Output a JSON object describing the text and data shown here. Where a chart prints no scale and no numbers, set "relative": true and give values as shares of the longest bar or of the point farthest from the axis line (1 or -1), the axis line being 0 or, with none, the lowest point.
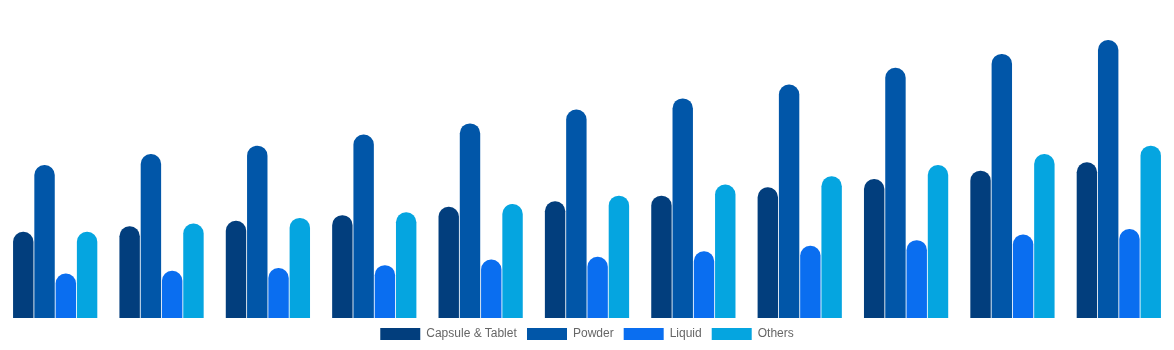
{
  "chart_data": {
    "type": "bar",
    "relative": true,
    "legend": "bottom",
    "grid": false,
    "categories": [
      null,
      null,
      null,
      null,
      null,
      null,
      null,
      null,
      null,
      null,
      null
    ],
    "series": [
      {
        "name": "Capsule & Tablet",
        "color": "#023e7d",
        "values": [
          0.31,
          0.33,
          0.35,
          0.37,
          0.4,
          0.42,
          0.44,
          0.47,
          0.5,
          0.53,
          0.56
        ]
      },
      {
        "name": "Powder",
        "color": "#0156a8",
        "values": [
          0.55,
          0.59,
          0.62,
          0.66,
          0.7,
          0.75,
          0.79,
          0.84,
          0.9,
          0.95,
          1
        ]
      },
      {
        "name": "Liquid",
        "color": "#0a6ef0",
        "values": [
          0.16,
          0.17,
          0.18,
          0.19,
          0.21,
          0.22,
          0.24,
          0.26,
          0.28,
          0.3,
          0.32
        ]
      },
      {
        "name": "Others",
        "color": "#05a5e0",
        "values": [
          0.31,
          0.34,
          0.36,
          0.38,
          0.41,
          0.44,
          0.48,
          0.51,
          0.55,
          0.59,
          0.62
        ]
      }
    ]
  }
}
